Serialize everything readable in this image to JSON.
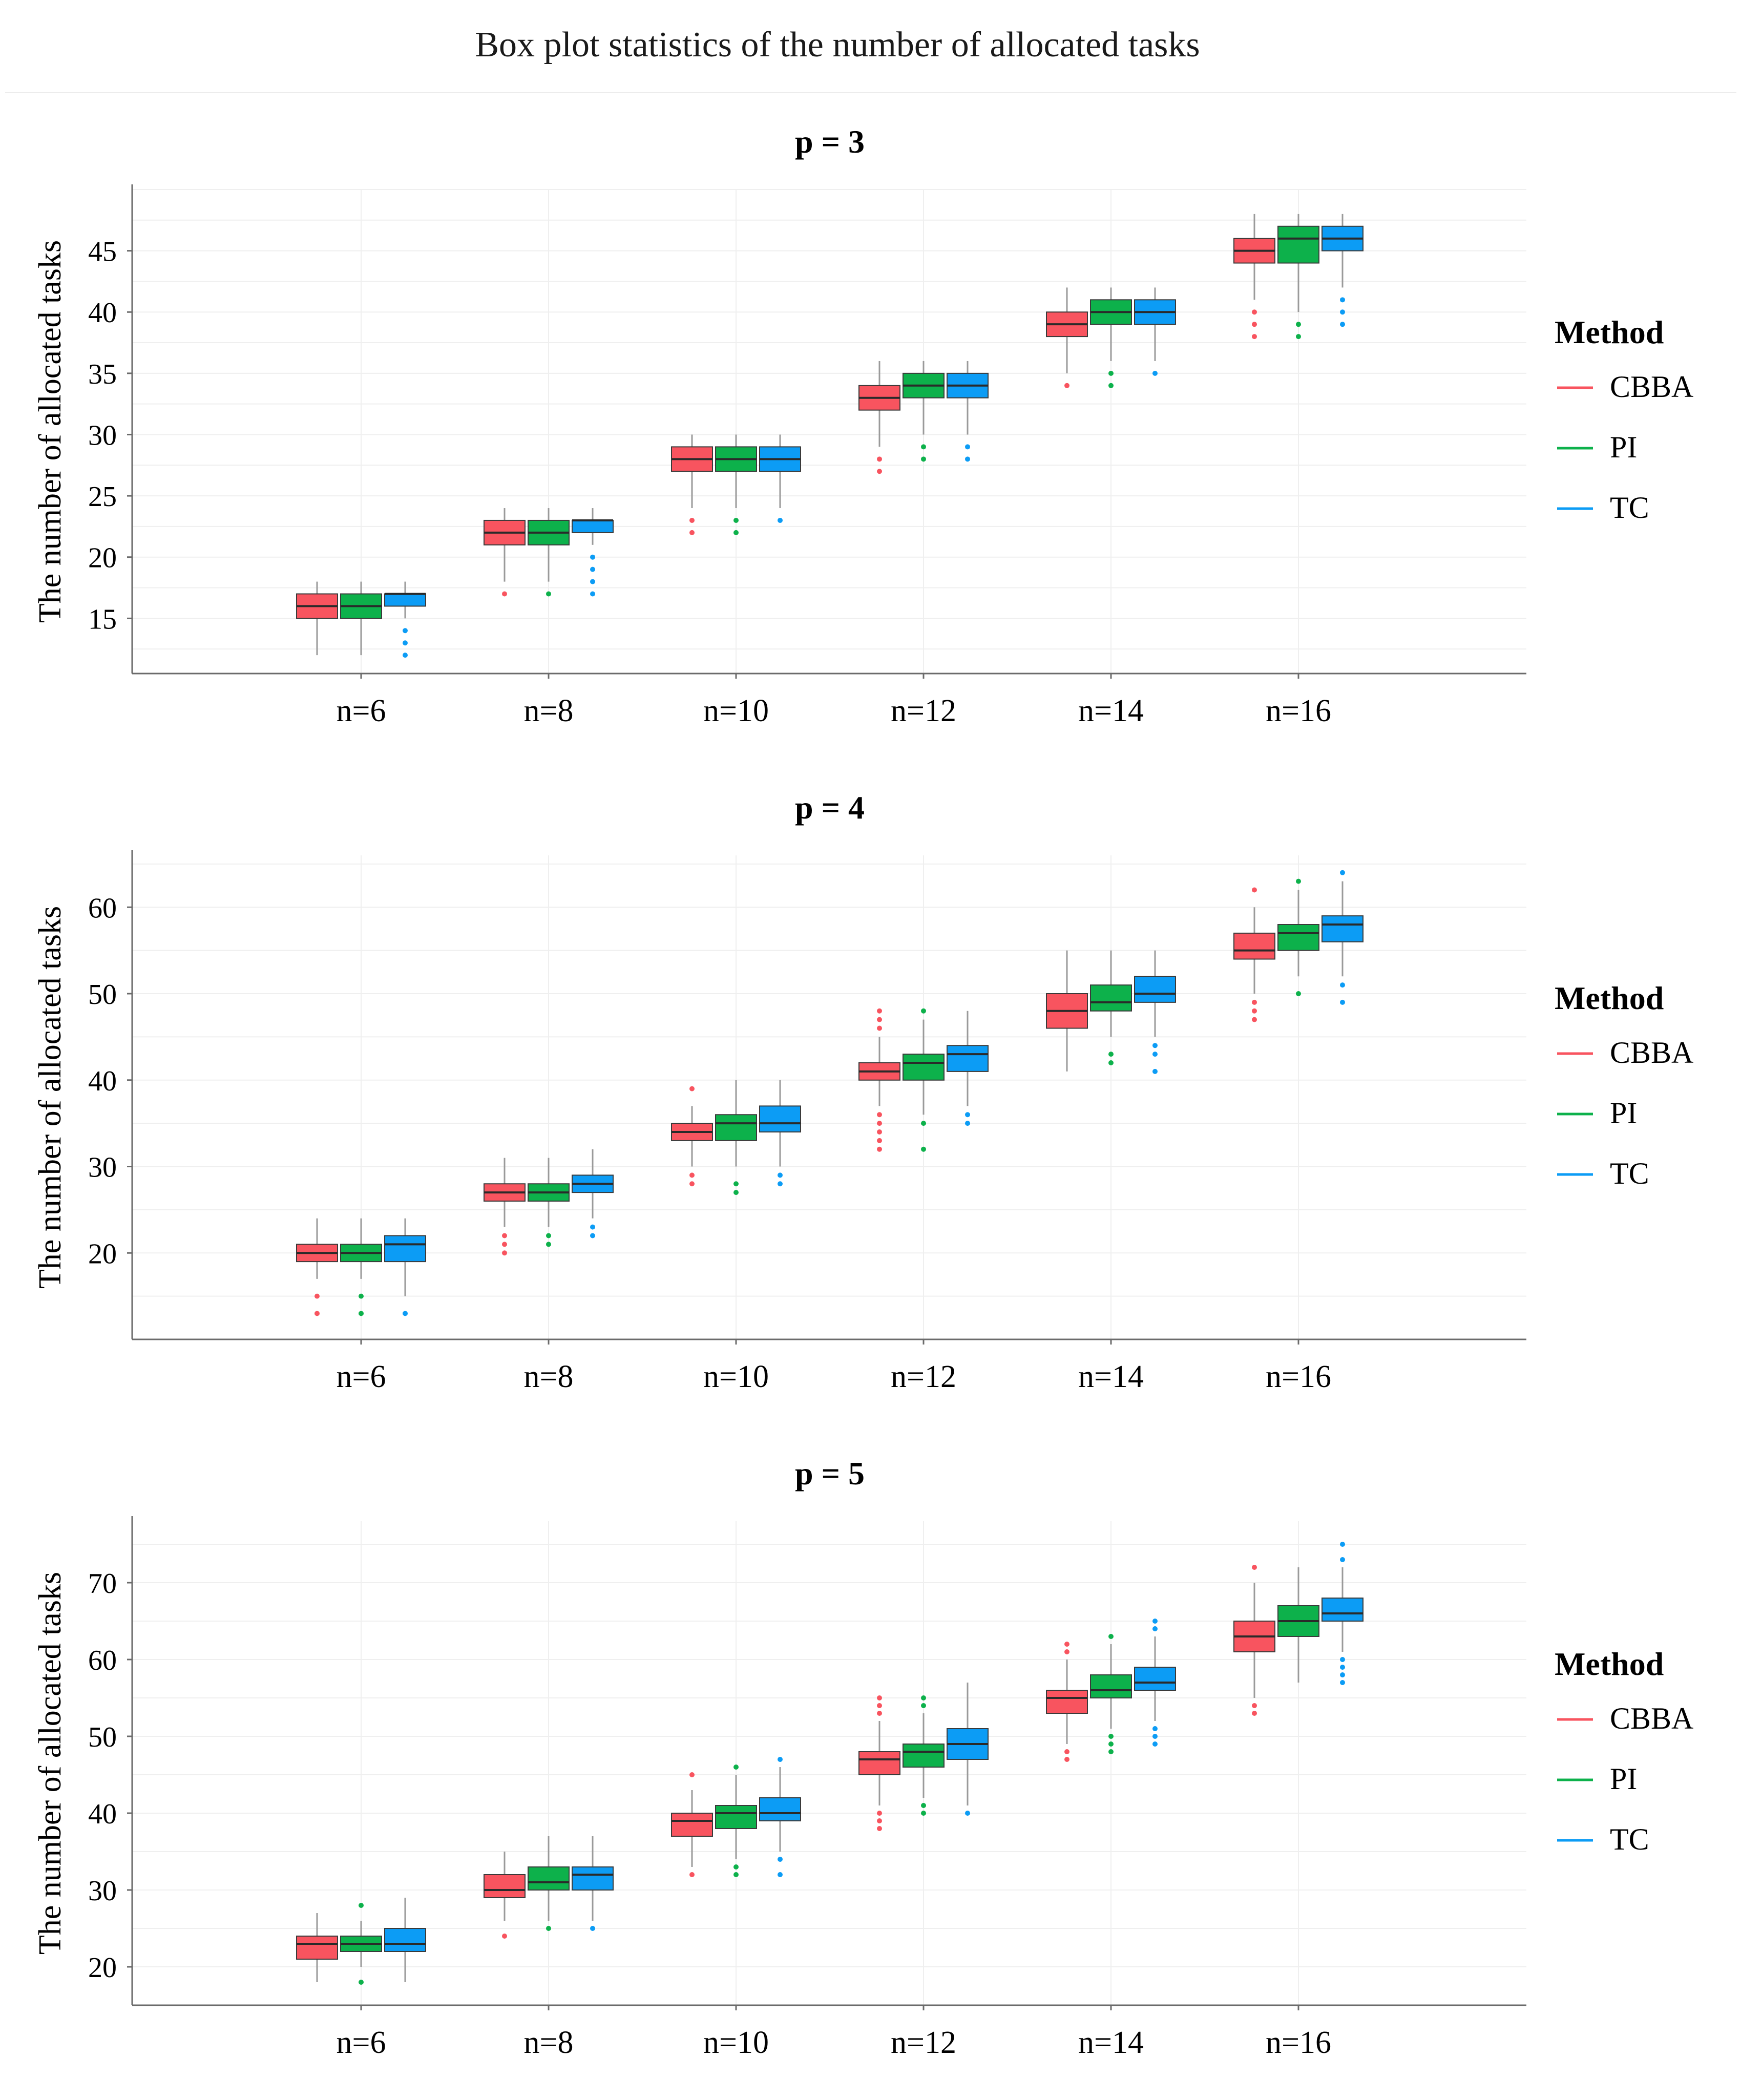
{
  "title": "Box plot statistics of the number of allocated tasks",
  "legend": {
    "title": "Method",
    "placement": "right",
    "entries": [
      {
        "name": "CBBA",
        "color": "#f8545f"
      },
      {
        "name": "PI",
        "color": "#0db14b"
      },
      {
        "name": "TC",
        "color": "#0c9cf5"
      }
    ]
  },
  "chart_data": [
    {
      "type": "boxplot",
      "title": "p = 3",
      "xlabel": "",
      "ylabel": "The number of allocated tasks",
      "categories": [
        "n=6",
        "n=8",
        "n=10",
        "n=12",
        "n=14",
        "n=16"
      ],
      "ylim": [
        10.5,
        50
      ],
      "yticks": [
        15,
        20,
        25,
        30,
        35,
        40,
        45
      ],
      "grid": true,
      "series": [
        {
          "name": "CBBA",
          "boxes": [
            {
              "min": 12,
              "q1": 15,
              "median": 16,
              "q3": 17,
              "max": 18,
              "outliers": []
            },
            {
              "min": 18,
              "q1": 21,
              "median": 22,
              "q3": 23,
              "max": 24,
              "outliers": [
                17
              ]
            },
            {
              "min": 24,
              "q1": 27,
              "median": 28,
              "q3": 29,
              "max": 30,
              "outliers": [
                22,
                23
              ]
            },
            {
              "min": 29,
              "q1": 32,
              "median": 33,
              "q3": 34,
              "max": 36,
              "outliers": [
                27,
                28
              ]
            },
            {
              "min": 35,
              "q1": 38,
              "median": 39,
              "q3": 40,
              "max": 42,
              "outliers": [
                34
              ]
            },
            {
              "min": 41,
              "q1": 44,
              "median": 45,
              "q3": 46,
              "max": 48,
              "outliers": [
                38,
                39,
                40
              ]
            }
          ]
        },
        {
          "name": "PI",
          "boxes": [
            {
              "min": 12,
              "q1": 15,
              "median": 16,
              "q3": 17,
              "max": 18,
              "outliers": []
            },
            {
              "min": 18,
              "q1": 21,
              "median": 22,
              "q3": 23,
              "max": 24,
              "outliers": [
                17
              ]
            },
            {
              "min": 24,
              "q1": 27,
              "median": 28,
              "q3": 29,
              "max": 30,
              "outliers": [
                22,
                23
              ]
            },
            {
              "min": 30,
              "q1": 33,
              "median": 34,
              "q3": 35,
              "max": 36,
              "outliers": [
                28,
                29
              ]
            },
            {
              "min": 36,
              "q1": 39,
              "median": 40,
              "q3": 41,
              "max": 42,
              "outliers": [
                34,
                35
              ]
            },
            {
              "min": 40,
              "q1": 44,
              "median": 46,
              "q3": 47,
              "max": 48,
              "outliers": [
                38,
                39
              ]
            }
          ]
        },
        {
          "name": "TC",
          "boxes": [
            {
              "min": 15,
              "q1": 16,
              "median": 17,
              "q3": 17,
              "max": 18,
              "outliers": [
                12,
                13,
                14
              ]
            },
            {
              "min": 21,
              "q1": 22,
              "median": 23,
              "q3": 23,
              "max": 24,
              "outliers": [
                17,
                18,
                19,
                20
              ]
            },
            {
              "min": 24,
              "q1": 27,
              "median": 28,
              "q3": 29,
              "max": 30,
              "outliers": [
                23
              ]
            },
            {
              "min": 30,
              "q1": 33,
              "median": 34,
              "q3": 35,
              "max": 36,
              "outliers": [
                28,
                29
              ]
            },
            {
              "min": 36,
              "q1": 39,
              "median": 40,
              "q3": 41,
              "max": 42,
              "outliers": [
                35
              ]
            },
            {
              "min": 42,
              "q1": 45,
              "median": 46,
              "q3": 47,
              "max": 48,
              "outliers": [
                39,
                40,
                41
              ]
            }
          ]
        }
      ]
    },
    {
      "type": "boxplot",
      "title": "p = 4",
      "xlabel": "",
      "ylabel": "The number of allocated tasks",
      "categories": [
        "n=6",
        "n=8",
        "n=10",
        "n=12",
        "n=14",
        "n=16"
      ],
      "ylim": [
        10,
        66
      ],
      "yticks": [
        20,
        30,
        40,
        50,
        60
      ],
      "grid": true,
      "series": [
        {
          "name": "CBBA",
          "boxes": [
            {
              "min": 17,
              "q1": 19,
              "median": 20,
              "q3": 21,
              "max": 24,
              "outliers": [
                13,
                15
              ]
            },
            {
              "min": 23,
              "q1": 26,
              "median": 27,
              "q3": 28,
              "max": 31,
              "outliers": [
                20,
                21,
                22
              ]
            },
            {
              "min": 30,
              "q1": 33,
              "median": 34,
              "q3": 35,
              "max": 37,
              "outliers": [
                28,
                29,
                39
              ]
            },
            {
              "min": 37,
              "q1": 40,
              "median": 41,
              "q3": 42,
              "max": 45,
              "outliers": [
                32,
                33,
                34,
                35,
                36,
                46,
                47,
                48
              ]
            },
            {
              "min": 41,
              "q1": 46,
              "median": 48,
              "q3": 50,
              "max": 55,
              "outliers": []
            },
            {
              "min": 50,
              "q1": 54,
              "median": 55,
              "q3": 57,
              "max": 60,
              "outliers": [
                47,
                48,
                49,
                62
              ]
            }
          ]
        },
        {
          "name": "PI",
          "boxes": [
            {
              "min": 17,
              "q1": 19,
              "median": 20,
              "q3": 21,
              "max": 24,
              "outliers": [
                13,
                15
              ]
            },
            {
              "min": 23,
              "q1": 26,
              "median": 27,
              "q3": 28,
              "max": 31,
              "outliers": [
                21,
                22
              ]
            },
            {
              "min": 30,
              "q1": 33,
              "median": 35,
              "q3": 36,
              "max": 40,
              "outliers": [
                27,
                28
              ]
            },
            {
              "min": 36,
              "q1": 40,
              "median": 42,
              "q3": 43,
              "max": 47,
              "outliers": [
                32,
                35,
                48
              ]
            },
            {
              "min": 45,
              "q1": 48,
              "median": 49,
              "q3": 51,
              "max": 55,
              "outliers": [
                42,
                43
              ]
            },
            {
              "min": 52,
              "q1": 55,
              "median": 57,
              "q3": 58,
              "max": 62,
              "outliers": [
                50,
                63
              ]
            }
          ]
        },
        {
          "name": "TC",
          "boxes": [
            {
              "min": 15,
              "q1": 19,
              "median": 21,
              "q3": 22,
              "max": 24,
              "outliers": [
                13
              ]
            },
            {
              "min": 24,
              "q1": 27,
              "median": 28,
              "q3": 29,
              "max": 32,
              "outliers": [
                22,
                23
              ]
            },
            {
              "min": 30,
              "q1": 34,
              "median": 35,
              "q3": 37,
              "max": 40,
              "outliers": [
                28,
                29
              ]
            },
            {
              "min": 37,
              "q1": 41,
              "median": 43,
              "q3": 44,
              "max": 48,
              "outliers": [
                35,
                36
              ]
            },
            {
              "min": 45,
              "q1": 49,
              "median": 50,
              "q3": 52,
              "max": 55,
              "outliers": [
                41,
                43,
                44
              ]
            },
            {
              "min": 52,
              "q1": 56,
              "median": 58,
              "q3": 59,
              "max": 63,
              "outliers": [
                49,
                51,
                64
              ]
            }
          ]
        }
      ]
    },
    {
      "type": "boxplot",
      "title": "p = 5",
      "xlabel": "",
      "ylabel": "The number of allocated tasks",
      "categories": [
        "n=6",
        "n=8",
        "n=10",
        "n=12",
        "n=14",
        "n=16"
      ],
      "ylim": [
        15,
        78
      ],
      "yticks": [
        20,
        30,
        40,
        50,
        60,
        70
      ],
      "grid": true,
      "series": [
        {
          "name": "CBBA",
          "boxes": [
            {
              "min": 18,
              "q1": 21,
              "median": 23,
              "q3": 24,
              "max": 27,
              "outliers": []
            },
            {
              "min": 26,
              "q1": 29,
              "median": 30,
              "q3": 32,
              "max": 35,
              "outliers": [
                24
              ]
            },
            {
              "min": 33,
              "q1": 37,
              "median": 39,
              "q3": 40,
              "max": 43,
              "outliers": [
                32,
                45
              ]
            },
            {
              "min": 41,
              "q1": 45,
              "median": 47,
              "q3": 48,
              "max": 52,
              "outliers": [
                38,
                39,
                40,
                53,
                54,
                55
              ]
            },
            {
              "min": 49,
              "q1": 53,
              "median": 55,
              "q3": 56,
              "max": 60,
              "outliers": [
                47,
                48,
                61,
                62
              ]
            },
            {
              "min": 55,
              "q1": 61,
              "median": 63,
              "q3": 65,
              "max": 70,
              "outliers": [
                53,
                54,
                72
              ]
            }
          ]
        },
        {
          "name": "PI",
          "boxes": [
            {
              "min": 20,
              "q1": 22,
              "median": 23,
              "q3": 24,
              "max": 26,
              "outliers": [
                18,
                28
              ]
            },
            {
              "min": 26,
              "q1": 30,
              "median": 31,
              "q3": 33,
              "max": 37,
              "outliers": [
                25
              ]
            },
            {
              "min": 34,
              "q1": 38,
              "median": 40,
              "q3": 41,
              "max": 45,
              "outliers": [
                32,
                33,
                46
              ]
            },
            {
              "min": 42,
              "q1": 46,
              "median": 48,
              "q3": 49,
              "max": 53,
              "outliers": [
                40,
                41,
                54,
                55
              ]
            },
            {
              "min": 51,
              "q1": 55,
              "median": 56,
              "q3": 58,
              "max": 62,
              "outliers": [
                48,
                49,
                50,
                63
              ]
            },
            {
              "min": 57,
              "q1": 63,
              "median": 65,
              "q3": 67,
              "max": 72,
              "outliers": []
            }
          ]
        },
        {
          "name": "TC",
          "boxes": [
            {
              "min": 18,
              "q1": 22,
              "median": 23,
              "q3": 25,
              "max": 29,
              "outliers": []
            },
            {
              "min": 26,
              "q1": 30,
              "median": 32,
              "q3": 33,
              "max": 37,
              "outliers": [
                25
              ]
            },
            {
              "min": 35,
              "q1": 39,
              "median": 40,
              "q3": 42,
              "max": 46,
              "outliers": [
                32,
                34,
                47
              ]
            },
            {
              "min": 41,
              "q1": 47,
              "median": 49,
              "q3": 51,
              "max": 57,
              "outliers": [
                40
              ]
            },
            {
              "min": 52,
              "q1": 56,
              "median": 57,
              "q3": 59,
              "max": 63,
              "outliers": [
                49,
                50,
                51,
                64,
                65
              ]
            },
            {
              "min": 61,
              "q1": 65,
              "median": 66,
              "q3": 68,
              "max": 72,
              "outliers": [
                57,
                58,
                59,
                60,
                73,
                75
              ]
            }
          ]
        }
      ]
    }
  ]
}
